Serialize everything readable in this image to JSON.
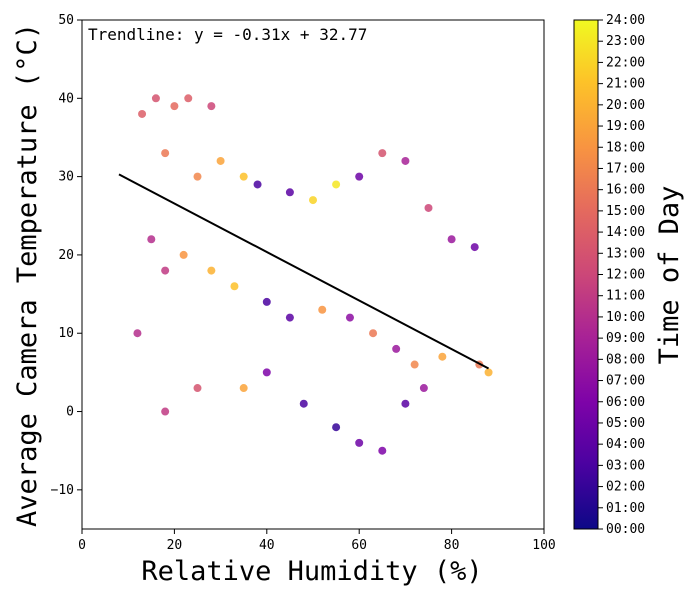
{
  "chart_data": {
    "type": "scatter",
    "xlabel": "Relative Humidity (%)",
    "ylabel": "Average Camera Temperature (°C)",
    "xlim": [
      0,
      100
    ],
    "ylim": [
      -15,
      50
    ],
    "xticks": [
      0,
      20,
      40,
      60,
      80,
      100
    ],
    "yticks": [
      -10,
      0,
      10,
      20,
      30,
      40,
      50
    ],
    "grid": false,
    "annotation": "Trendline: y = -0.31x + 32.77",
    "trendline": {
      "slope": -0.31,
      "intercept": 32.77,
      "x_range": [
        8,
        88
      ]
    },
    "colorbar": {
      "label": "Time of Day",
      "colormap": "plasma",
      "ticks": [
        "00:00",
        "01:00",
        "02:00",
        "03:00",
        "04:00",
        "05:00",
        "06:00",
        "07:00",
        "08:00",
        "09:00",
        "10:00",
        "11:00",
        "12:00",
        "13:00",
        "14:00",
        "15:00",
        "16:00",
        "17:00",
        "18:00",
        "19:00",
        "20:00",
        "21:00",
        "22:00",
        "23:00",
        "24:00"
      ]
    },
    "series_description_points": [
      {
        "x": 13,
        "y": 38,
        "hour": 14
      },
      {
        "x": 16,
        "y": 40,
        "hour": 13
      },
      {
        "x": 20,
        "y": 39,
        "hour": 15
      },
      {
        "x": 23,
        "y": 40,
        "hour": 14
      },
      {
        "x": 28,
        "y": 39,
        "hour": 12
      },
      {
        "x": 18,
        "y": 33,
        "hour": 16
      },
      {
        "x": 25,
        "y": 30,
        "hour": 17
      },
      {
        "x": 30,
        "y": 32,
        "hour": 19
      },
      {
        "x": 35,
        "y": 30,
        "hour": 21
      },
      {
        "x": 38,
        "y": 29,
        "hour": 3
      },
      {
        "x": 45,
        "y": 28,
        "hour": 4
      },
      {
        "x": 50,
        "y": 27,
        "hour": 22
      },
      {
        "x": 55,
        "y": 29,
        "hour": 23
      },
      {
        "x": 60,
        "y": 30,
        "hour": 5
      },
      {
        "x": 65,
        "y": 33,
        "hour": 13
      },
      {
        "x": 70,
        "y": 32,
        "hour": 9
      },
      {
        "x": 75,
        "y": 26,
        "hour": 12
      },
      {
        "x": 80,
        "y": 22,
        "hour": 8
      },
      {
        "x": 85,
        "y": 21,
        "hour": 5
      },
      {
        "x": 15,
        "y": 22,
        "hour": 10
      },
      {
        "x": 18,
        "y": 18,
        "hour": 11
      },
      {
        "x": 22,
        "y": 20,
        "hour": 18
      },
      {
        "x": 28,
        "y": 18,
        "hour": 20
      },
      {
        "x": 33,
        "y": 16,
        "hour": 21
      },
      {
        "x": 40,
        "y": 14,
        "hour": 3
      },
      {
        "x": 45,
        "y": 12,
        "hour": 4
      },
      {
        "x": 52,
        "y": 13,
        "hour": 18
      },
      {
        "x": 58,
        "y": 12,
        "hour": 7
      },
      {
        "x": 63,
        "y": 10,
        "hour": 16
      },
      {
        "x": 68,
        "y": 8,
        "hour": 8
      },
      {
        "x": 72,
        "y": 6,
        "hour": 17
      },
      {
        "x": 78,
        "y": 7,
        "hour": 19
      },
      {
        "x": 86,
        "y": 6,
        "hour": 16
      },
      {
        "x": 12,
        "y": 10,
        "hour": 10
      },
      {
        "x": 18,
        "y": 0,
        "hour": 11
      },
      {
        "x": 25,
        "y": 3,
        "hour": 13
      },
      {
        "x": 35,
        "y": 3,
        "hour": 19
      },
      {
        "x": 40,
        "y": 5,
        "hour": 6
      },
      {
        "x": 48,
        "y": 1,
        "hour": 3
      },
      {
        "x": 55,
        "y": -2,
        "hour": 2
      },
      {
        "x": 60,
        "y": -4,
        "hour": 5
      },
      {
        "x": 65,
        "y": -5,
        "hour": 6
      },
      {
        "x": 70,
        "y": 1,
        "hour": 4
      },
      {
        "x": 74,
        "y": 3,
        "hour": 8
      },
      {
        "x": 88,
        "y": 5,
        "hour": 20
      }
    ]
  }
}
